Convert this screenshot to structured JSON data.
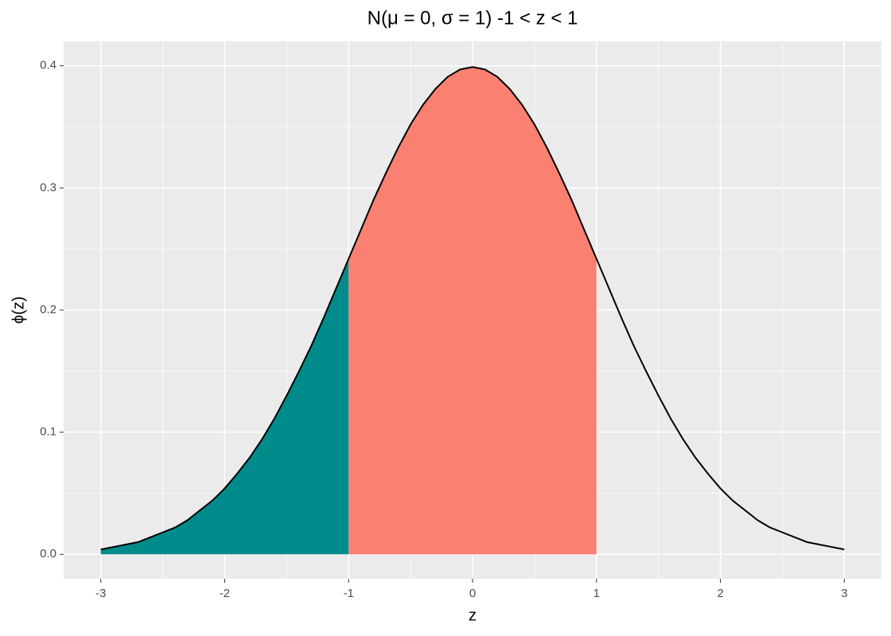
{
  "chart_data": {
    "type": "line",
    "title": "N(μ = 0, σ = 1) -1 < z < 1",
    "x_label": "z",
    "y_label": "ϕ(z)",
    "x": [
      -3.0,
      -2.9,
      -2.8,
      -2.7,
      -2.6,
      -2.5,
      -2.4,
      -2.3,
      -2.2,
      -2.1,
      -2.0,
      -1.9,
      -1.8,
      -1.7,
      -1.6,
      -1.5,
      -1.4,
      -1.3,
      -1.2,
      -1.1,
      -1.0,
      -0.9,
      -0.8,
      -0.7,
      -0.6,
      -0.5,
      -0.4,
      -0.3,
      -0.2,
      -0.1,
      0.0,
      0.1,
      0.2,
      0.3,
      0.4,
      0.5,
      0.6,
      0.7,
      0.8,
      0.9,
      1.0,
      1.1,
      1.2,
      1.3,
      1.4,
      1.5,
      1.6,
      1.7,
      1.8,
      1.9,
      2.0,
      2.1,
      2.2,
      2.3,
      2.4,
      2.5,
      2.6,
      2.7,
      2.8,
      2.9,
      3.0
    ],
    "series": [
      {
        "color": "#000000",
        "values": [
          0.004,
          0.006,
          0.008,
          0.01,
          0.014,
          0.018,
          0.022,
          0.028,
          0.036,
          0.044,
          0.054,
          0.066,
          0.079,
          0.094,
          0.111,
          0.13,
          0.15,
          0.171,
          0.194,
          0.218,
          0.242,
          0.266,
          0.29,
          0.312,
          0.333,
          0.352,
          0.368,
          0.381,
          0.391,
          0.397,
          0.399,
          0.397,
          0.391,
          0.381,
          0.368,
          0.352,
          0.333,
          0.312,
          0.29,
          0.266,
          0.242,
          0.218,
          0.194,
          0.171,
          0.15,
          0.13,
          0.111,
          0.094,
          0.079,
          0.066,
          0.054,
          0.044,
          0.036,
          0.028,
          0.022,
          0.018,
          0.014,
          0.01,
          0.008,
          0.006,
          0.004
        ]
      }
    ],
    "shaded_regions": [
      {
        "from": -3,
        "to": -1,
        "color": "#008B8B"
      },
      {
        "from": -1,
        "to": 1,
        "color": "#FA8072"
      }
    ],
    "xlim": [
      -3.3,
      3.3
    ],
    "ylim": [
      -0.02,
      0.42
    ],
    "xticks": [
      -3,
      -2,
      -1,
      0,
      1,
      2,
      3
    ],
    "yticks": [
      {
        "value": 0,
        "label": "0.0"
      },
      0.1,
      0.2,
      0.3,
      0.4
    ],
    "grid": true,
    "panel_color": "#EBEBEB"
  }
}
